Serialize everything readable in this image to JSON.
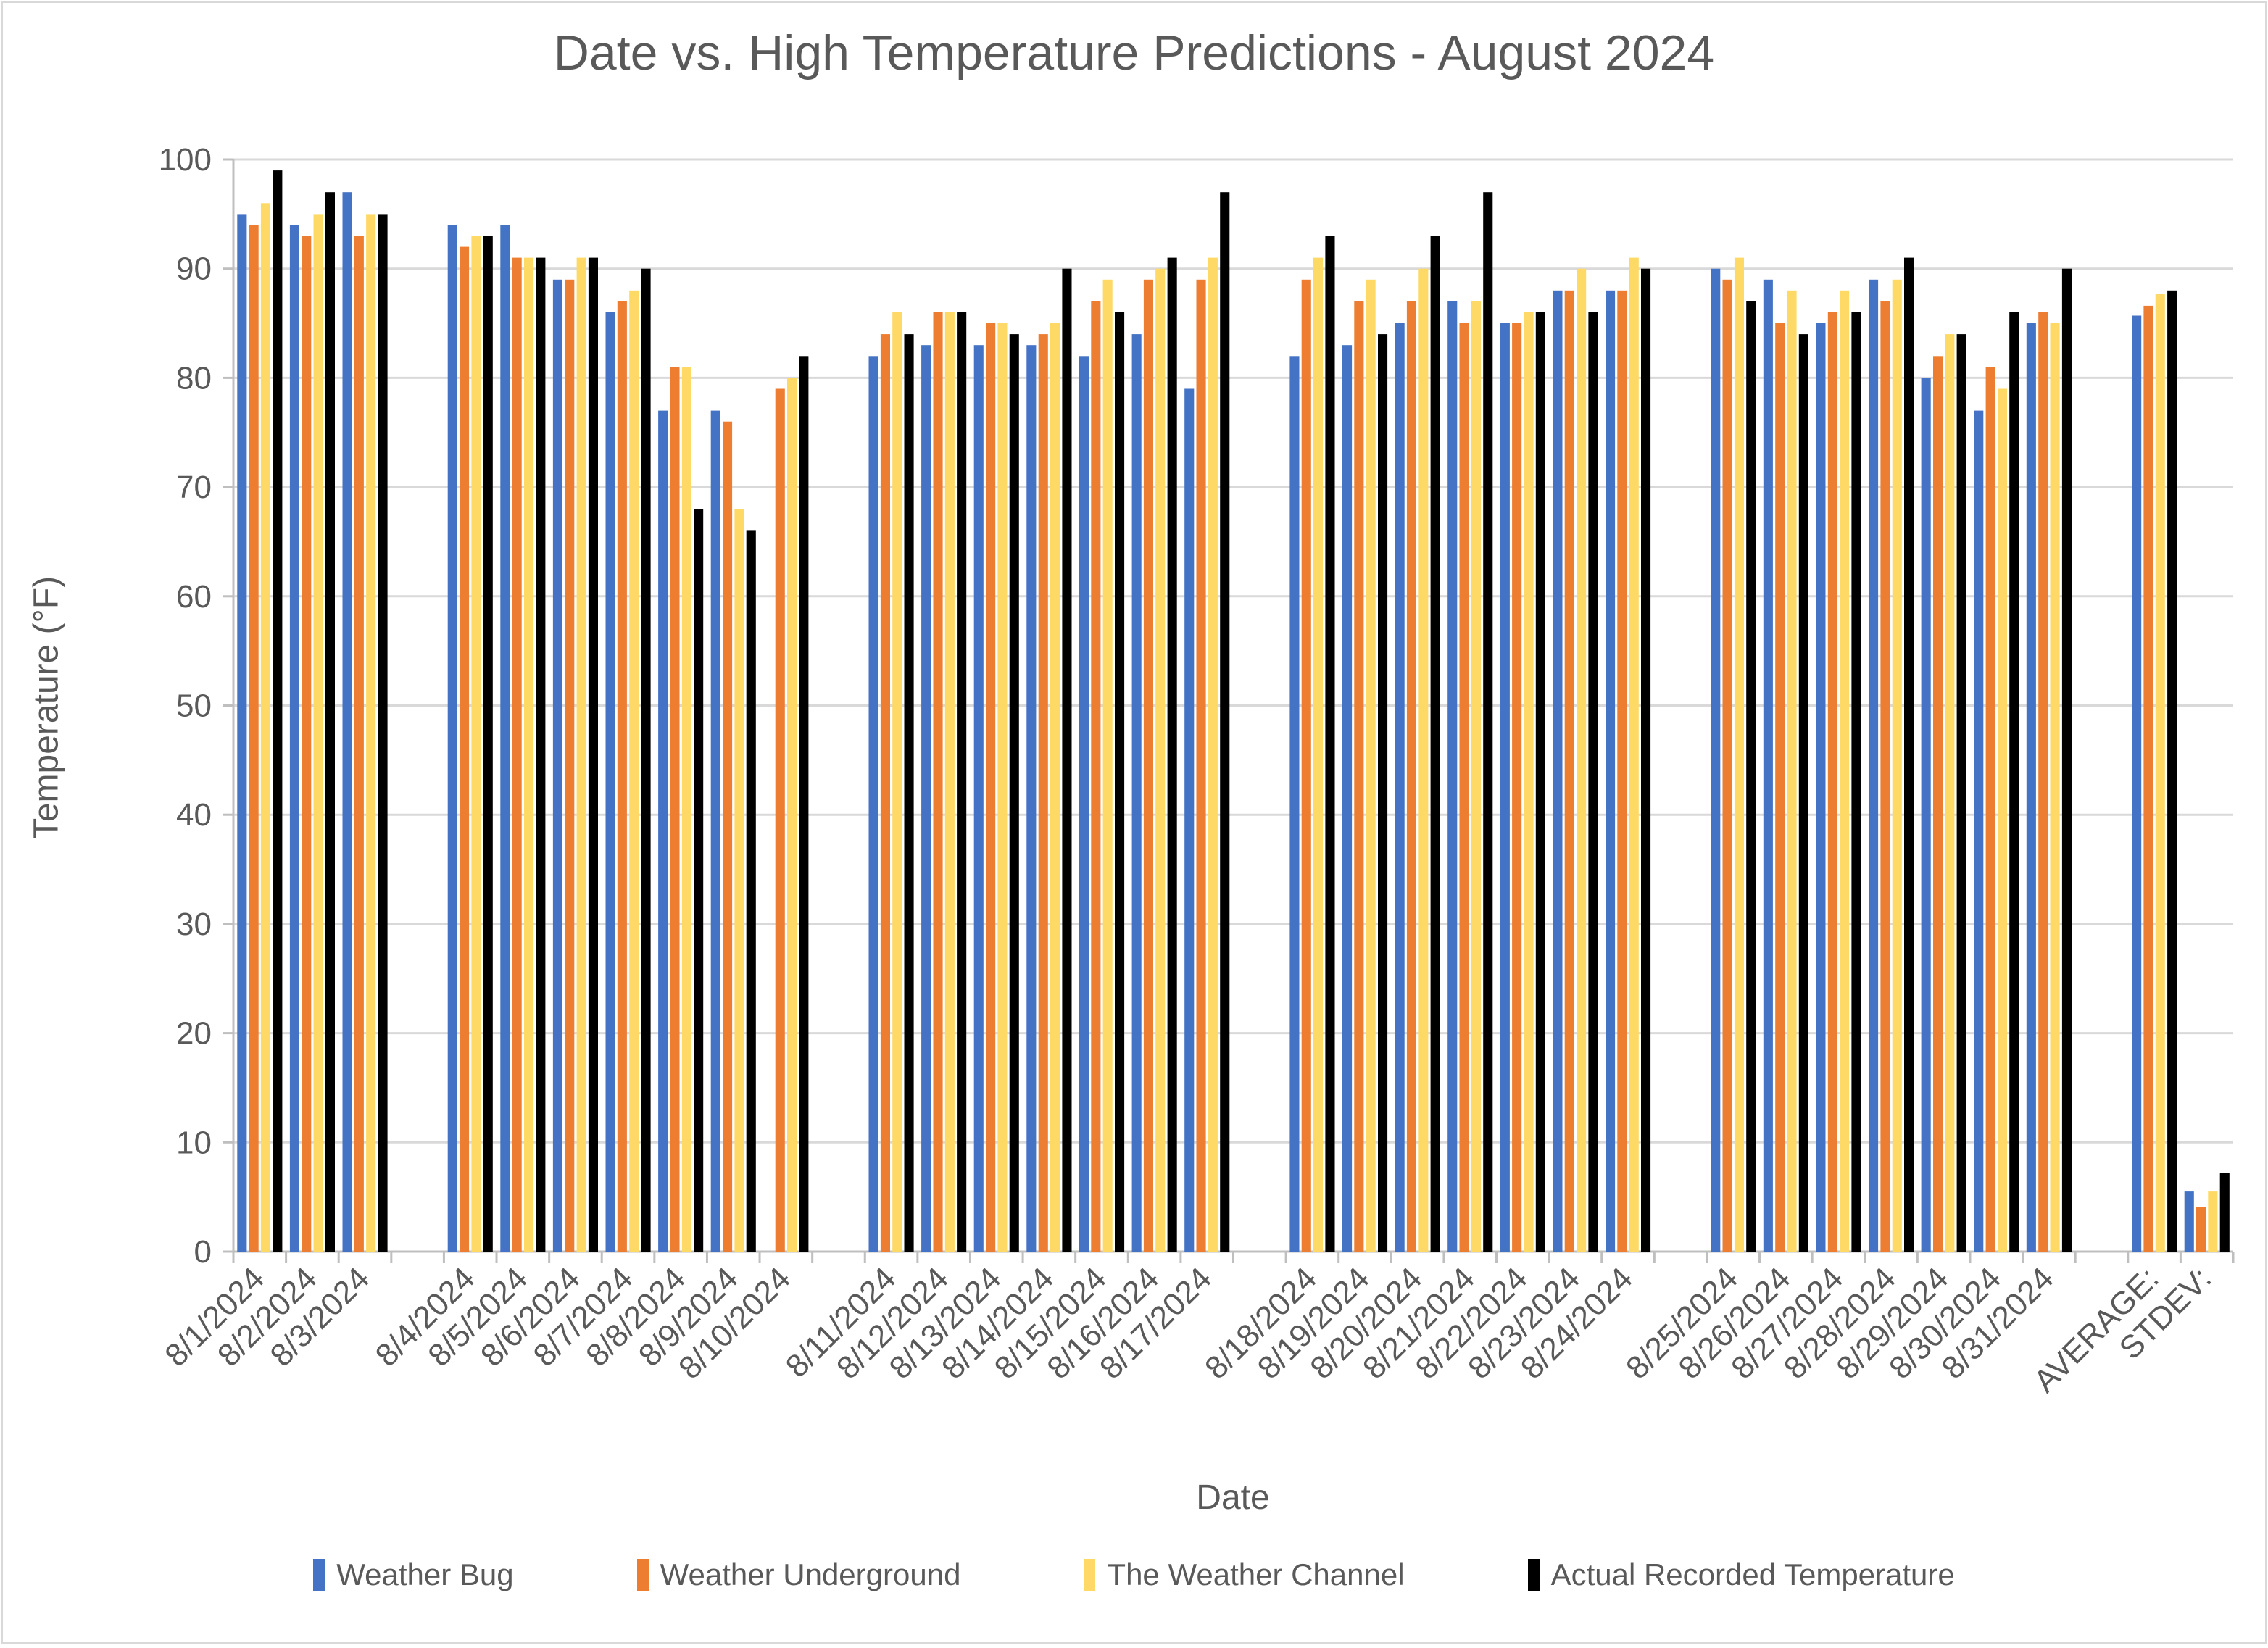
{
  "title": "Date vs. High Temperature Predictions - August 2024",
  "axes": {
    "x_title": "Date",
    "y_title": "Temperature (°F)"
  },
  "colors": {
    "series_blue": "#4472C4",
    "series_orange": "#ED7D31",
    "series_yellow": "#FFD966",
    "series_black": "#000000",
    "text": "#595959",
    "gridline": "#D9D9D9",
    "axis_line": "#BFBFBF",
    "background": "#FFFFFF"
  },
  "chart_data": {
    "type": "bar",
    "title": "Date vs. High Temperature Predictions - August 2024",
    "xlabel": "Date",
    "ylabel": "Temperature (°F)",
    "ylim": [
      0,
      100
    ],
    "ytick_step": 10,
    "ytick_labels": [
      "0",
      "10",
      "20",
      "30",
      "40",
      "50",
      "60",
      "70",
      "80",
      "90",
      "100"
    ],
    "grid": "horizontal",
    "legend_position": "bottom",
    "categories": [
      "8/1/2024",
      "8/2/2024",
      "8/3/2024",
      "8/4/2024",
      "8/5/2024",
      "8/6/2024",
      "8/7/2024",
      "8/8/2024",
      "8/9/2024",
      "8/10/2024",
      "8/11/2024",
      "8/12/2024",
      "8/13/2024",
      "8/14/2024",
      "8/15/2024",
      "8/16/2024",
      "8/17/2024",
      "8/18/2024",
      "8/19/2024",
      "8/20/2024",
      "8/21/2024",
      "8/22/2024",
      "8/23/2024",
      "8/24/2024",
      "8/25/2024",
      "8/26/2024",
      "8/27/2024",
      "8/28/2024",
      "8/29/2024",
      "8/30/2024",
      "8/31/2024",
      "AVERAGE:",
      "STDEV:"
    ],
    "gaps_after_indices": [
      2,
      9,
      16,
      23,
      30
    ],
    "series": [
      {
        "name": "Weather Bug",
        "color": "#4472C4",
        "values": [
          95,
          94,
          97,
          94,
          94,
          89,
          86,
          77,
          77,
          null,
          82,
          83,
          83,
          83,
          82,
          84,
          79,
          82,
          83,
          85,
          87,
          85,
          88,
          88,
          90,
          89,
          85,
          89,
          80,
          77,
          85,
          85.7,
          5.5
        ]
      },
      {
        "name": "Weather Underground",
        "color": "#ED7D31",
        "values": [
          94,
          93,
          93,
          92,
          91,
          89,
          87,
          81,
          76,
          79,
          84,
          86,
          85,
          84,
          87,
          89,
          89,
          89,
          87,
          87,
          85,
          85,
          88,
          88,
          89,
          85,
          86,
          87,
          82,
          81,
          86,
          86.6,
          4.1
        ]
      },
      {
        "name": "The Weather Channel",
        "color": "#FFD966",
        "values": [
          96,
          95,
          95,
          93,
          91,
          91,
          88,
          81,
          68,
          80,
          86,
          86,
          85,
          85,
          89,
          90,
          91,
          91,
          89,
          90,
          87,
          86,
          90,
          91,
          91,
          88,
          88,
          89,
          84,
          79,
          85,
          87.7,
          5.5
        ]
      },
      {
        "name": "Actual Recorded Temperature",
        "color": "#000000",
        "values": [
          99,
          97,
          95,
          93,
          91,
          91,
          90,
          68,
          66,
          82,
          84,
          86,
          84,
          90,
          86,
          91,
          97,
          93,
          84,
          93,
          97,
          86,
          86,
          90,
          87,
          84,
          86,
          91,
          84,
          86,
          90,
          88.0,
          7.2
        ]
      }
    ]
  }
}
